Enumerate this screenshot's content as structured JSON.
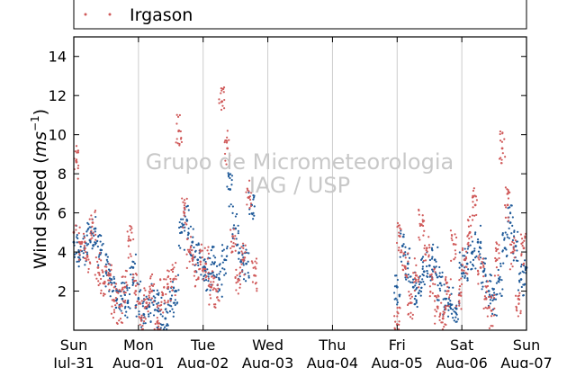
{
  "chart_data": {
    "type": "scatter",
    "ylabel": "Wind speed (",
    "ylabel_unit": "ms",
    "ylabel_exp": "−1",
    "ylabel_close": ")",
    "ylim": [
      0,
      15
    ],
    "yticks": [
      2,
      4,
      6,
      8,
      10,
      12,
      14
    ],
    "xlim": [
      "2016-07-31",
      "2016-08-07"
    ],
    "xticks": [
      {
        "date": "2016-07-31",
        "day": "Sun",
        "label": "Jul-31"
      },
      {
        "date": "2016-08-01",
        "day": "Mon",
        "label": "Aug-01"
      },
      {
        "date": "2016-08-02",
        "day": "Tue",
        "label": "Aug-02"
      },
      {
        "date": "2016-08-03",
        "day": "Wed",
        "label": "Aug-03"
      },
      {
        "date": "2016-08-04",
        "day": "Thu",
        "label": "Aug-04"
      },
      {
        "date": "2016-08-05",
        "day": "Fri",
        "label": "Aug-05"
      },
      {
        "date": "2016-08-06",
        "day": "Sat",
        "label": "Aug-06"
      },
      {
        "date": "2016-08-07",
        "day": "Sun",
        "label": "Aug-07"
      }
    ],
    "grid": "vertical",
    "legend_placement": "top",
    "watermark": [
      "Grupo de Micrometeorologia",
      "IAG / USP"
    ],
    "series": [
      {
        "color": "#1f5a99",
        "x": [
          "2016-07-31 00:00",
          "2016-07-31 02:00",
          "2016-07-31 04:00",
          "2016-07-31 06:00",
          "2016-07-31 08:00",
          "2016-07-31 10:00",
          "2016-07-31 12:00",
          "2016-07-31 14:00",
          "2016-07-31 16:00",
          "2016-07-31 18:00",
          "2016-07-31 20:00",
          "2016-07-31 22:00",
          "2016-08-01 00:00",
          "2016-08-01 02:00",
          "2016-08-01 04:00",
          "2016-08-01 06:00",
          "2016-08-01 08:00",
          "2016-08-01 10:00",
          "2016-08-01 12:00",
          "2016-08-01 14:00",
          "2016-08-01 16:00",
          "2016-08-01 18:00",
          "2016-08-01 20:00",
          "2016-08-01 22:00",
          "2016-08-02 00:00",
          "2016-08-02 02:00",
          "2016-08-02 04:00",
          "2016-08-02 06:00",
          "2016-08-02 08:00",
          "2016-08-02 10:00",
          "2016-08-02 12:00",
          "2016-08-02 14:00",
          "2016-08-02 16:00",
          "2016-08-02 18:00",
          "2016-08-05 00:00",
          "2016-08-05 02:00",
          "2016-08-05 04:00",
          "2016-08-05 06:00",
          "2016-08-05 08:00",
          "2016-08-05 10:00",
          "2016-08-05 12:00",
          "2016-08-05 14:00",
          "2016-08-05 16:00",
          "2016-08-05 18:00",
          "2016-08-05 20:00",
          "2016-08-05 22:00",
          "2016-08-06 00:00",
          "2016-08-06 02:00",
          "2016-08-06 04:00",
          "2016-08-06 06:00",
          "2016-08-06 08:00",
          "2016-08-06 10:00",
          "2016-08-06 12:00",
          "2016-08-06 14:00",
          "2016-08-06 16:00",
          "2016-08-06 18:00",
          "2016-08-06 20:00",
          "2016-08-06 22:00",
          "2016-08-07 00:00"
        ],
        "y": [
          4.5,
          4.0,
          4.2,
          4.6,
          5.2,
          4.1,
          3.0,
          2.6,
          2.0,
          1.6,
          1.4,
          3.2,
          1.6,
          0.8,
          1.2,
          1.5,
          1.0,
          0.6,
          1.6,
          2.0,
          5.0,
          5.6,
          4.5,
          3.6,
          3.2,
          2.9,
          3.4,
          2.6,
          3.6,
          7.2,
          5.2,
          3.5,
          3.4,
          6.4,
          2.2,
          4.3,
          3.4,
          2.2,
          1.9,
          3.0,
          3.3,
          3.6,
          2.4,
          1.6,
          1.3,
          1.1,
          3.3,
          3.4,
          4.0,
          4.5,
          3.0,
          2.0,
          1.6,
          2.6,
          4.2,
          5.5,
          4.3,
          2.6,
          3.2
        ]
      },
      {
        "name": "Irgason",
        "color": "#d05a5a",
        "x": [
          "2016-07-31 00:00",
          "2016-07-31 01:00",
          "2016-07-31 03:00",
          "2016-07-31 05:00",
          "2016-07-31 07:00",
          "2016-07-31 09:00",
          "2016-07-31 11:00",
          "2016-07-31 13:00",
          "2016-07-31 15:00",
          "2016-07-31 17:00",
          "2016-07-31 19:00",
          "2016-07-31 21:00",
          "2016-07-31 23:00",
          "2016-08-01 01:00",
          "2016-08-01 03:00",
          "2016-08-01 05:00",
          "2016-08-01 07:00",
          "2016-08-01 09:00",
          "2016-08-01 11:00",
          "2016-08-01 13:00",
          "2016-08-01 15:00",
          "2016-08-01 17:00",
          "2016-08-01 19:00",
          "2016-08-01 21:00",
          "2016-08-01 23:00",
          "2016-08-02 01:00",
          "2016-08-02 03:00",
          "2016-08-02 05:00",
          "2016-08-02 07:00",
          "2016-08-02 09:00",
          "2016-08-02 11:00",
          "2016-08-02 13:00",
          "2016-08-02 15:00",
          "2016-08-02 17:00",
          "2016-08-02 19:00",
          "2016-08-05 00:00",
          "2016-08-05 01:00",
          "2016-08-05 03:00",
          "2016-08-05 05:00",
          "2016-08-05 07:00",
          "2016-08-05 09:00",
          "2016-08-05 11:00",
          "2016-08-05 13:00",
          "2016-08-05 15:00",
          "2016-08-05 17:00",
          "2016-08-05 19:00",
          "2016-08-05 21:00",
          "2016-08-05 23:00",
          "2016-08-06 01:00",
          "2016-08-06 03:00",
          "2016-08-06 05:00",
          "2016-08-06 07:00",
          "2016-08-06 09:00",
          "2016-08-06 11:00",
          "2016-08-06 13:00",
          "2016-08-06 15:00",
          "2016-08-06 17:00",
          "2016-08-06 19:00",
          "2016-08-06 21:00",
          "2016-08-06 23:00"
        ],
        "y": [
          5.0,
          8.6,
          4.5,
          3.8,
          5.5,
          3.2,
          2.4,
          2.8,
          1.5,
          1.2,
          2.2,
          4.6,
          2.0,
          0.6,
          1.4,
          2.0,
          0.4,
          1.8,
          2.2,
          2.6,
          10.2,
          6.0,
          4.0,
          3.0,
          3.5,
          3.4,
          2.2,
          2.0,
          11.7,
          9.3,
          4.8,
          2.6,
          3.6,
          6.8,
          2.8,
          0.3,
          4.8,
          3.2,
          1.4,
          2.8,
          5.4,
          4.2,
          2.6,
          1.2,
          0.6,
          2.0,
          4.4,
          1.8,
          3.6,
          5.0,
          6.4,
          3.2,
          1.6,
          1.0,
          3.6,
          9.3,
          6.4,
          4.0,
          1.6,
          4.2
        ]
      }
    ]
  }
}
